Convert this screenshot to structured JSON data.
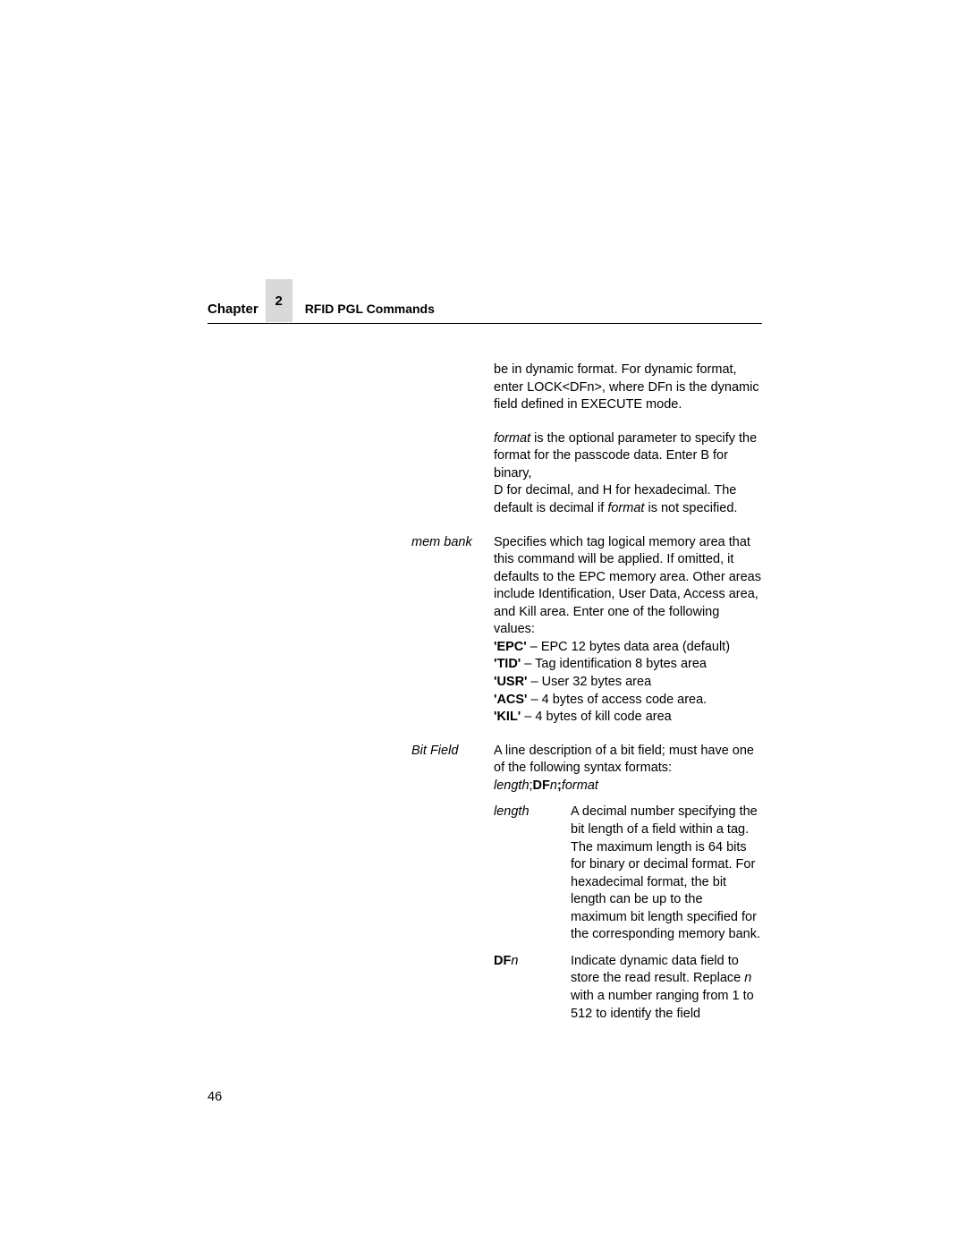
{
  "header": {
    "chapter_label": "Chapter",
    "chapter_num": "2",
    "section_title": "RFID PGL Commands"
  },
  "rows": [
    {
      "label": "",
      "paragraphs": [
        "be in dynamic format. For dynamic format, enter LOCK<DFn>, where DFn is the dynamic field defined in EXECUTE mode."
      ]
    },
    {
      "label": "",
      "format_para": true
    },
    {
      "label": "mem bank",
      "membank": true
    },
    {
      "label": "Bit Field",
      "bitfield": true
    }
  ],
  "format_text": {
    "italic1": "format",
    "t1": " is the optional parameter to specify the format for the passcode data. Enter B for binary,",
    "t2": "D for decimal, and H for hexadecimal. The default is decimal if ",
    "italic2": "format",
    "t3": " is not specified."
  },
  "membank": {
    "intro": "Specifies which tag logical memory area that this command will be applied. If omitted, it defaults to the EPC memory area. Other areas include Identification, User Data, Access area, and Kill area. Enter one of the following values:",
    "epc_b": "'EPC'",
    "epc_t": " – EPC 12 bytes data area (default)",
    "tid_b": "'TID'",
    "tid_t": " – Tag identification 8 bytes area",
    "usr_b": "'USR'",
    "usr_t": " – User 32 bytes area",
    "acs_b": "'ACS'",
    "acs_t": " – 4 bytes of access code area.",
    "kil_b": "'KIL'",
    "kil_t": " – 4 bytes of kill code area"
  },
  "bitfield": {
    "intro": "A line description of a bit field; must have one of the following syntax formats:",
    "syntax_i1": "length",
    "syntax_p1": ";",
    "syntax_b1": "DF",
    "syntax_i2": "n",
    "syntax_b2": ";",
    "syntax_i3": "format",
    "sub1_label": "length",
    "sub1_desc": "A decimal number specifying the bit length of a field within a tag. The maximum length is 64 bits for binary or decimal format. For hexadecimal format, the bit length can be up to the maximum bit length specified for the corresponding memory bank.",
    "sub2_label_b": "DF",
    "sub2_label_i": "n",
    "sub2_desc_t1": "Indicate dynamic data field to store the read result. Replace ",
    "sub2_desc_i": "n",
    "sub2_desc_t2": " with a number ranging from 1 to 512 to identify the field"
  },
  "page_num": "46"
}
